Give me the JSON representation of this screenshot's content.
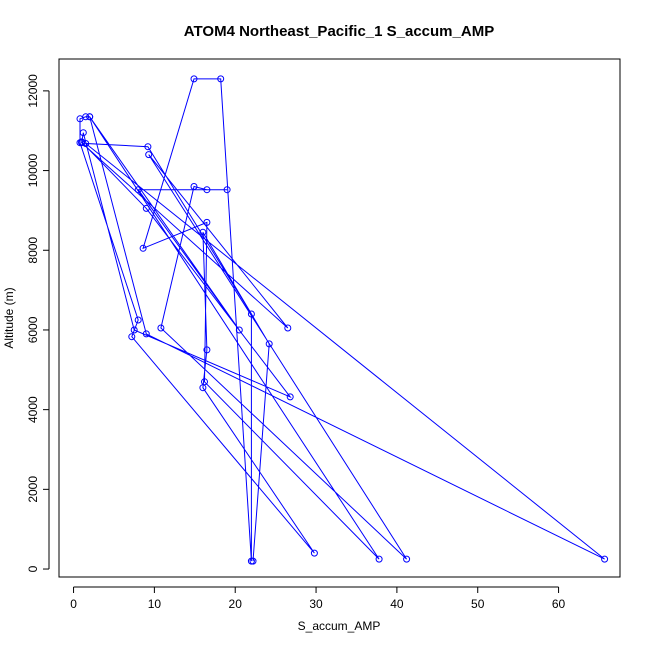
{
  "chart_data": {
    "type": "scatter",
    "title": "ATOM4 Northeast_Pacific_1 S_accum_AMP",
    "xlabel": "S_accum_AMP",
    "ylabel": "Altitude (m)",
    "xlim": [
      -1.8,
      67.6
    ],
    "ylim": [
      -200,
      12800
    ],
    "xticks": [
      0,
      10,
      20,
      30,
      40,
      50,
      60
    ],
    "yticks": [
      0,
      2000,
      4000,
      6000,
      8000,
      10000,
      12000
    ],
    "grid": false,
    "legend": "none",
    "color": "#0000ff",
    "series": [
      {
        "points": [
          [
            22.2,
            200
          ],
          [
            24.2,
            5650
          ],
          [
            16.0,
            8450
          ],
          [
            16.5,
            5500
          ],
          [
            16.0,
            4550
          ],
          [
            29.8,
            400
          ],
          [
            7.2,
            5830
          ],
          [
            8.0,
            6250
          ],
          [
            0.8,
            10700
          ],
          [
            0.8,
            11300
          ],
          [
            1.5,
            11350
          ],
          [
            2.0,
            11350
          ],
          [
            9.0,
            5900
          ],
          [
            65.7,
            250
          ],
          [
            1.5,
            10680
          ],
          [
            9.2,
            10600
          ],
          [
            22.0,
            6400
          ],
          [
            22.0,
            200
          ],
          [
            18.2,
            12300
          ],
          [
            14.9,
            12300
          ],
          [
            8.6,
            8050
          ],
          [
            16.5,
            8700
          ],
          [
            16.2,
            4700
          ],
          [
            37.8,
            250
          ],
          [
            2.0,
            11350
          ],
          [
            20.5,
            6000
          ],
          [
            8.0,
            9520
          ],
          [
            19.0,
            9520
          ],
          [
            16.5,
            9520
          ],
          [
            14.9,
            9600
          ],
          [
            10.8,
            6050
          ],
          [
            41.2,
            250
          ],
          [
            9.3,
            10400
          ],
          [
            26.5,
            6050
          ],
          [
            1.0,
            10700
          ],
          [
            1.2,
            10950
          ],
          [
            7.5,
            6000
          ],
          [
            26.8,
            4320
          ],
          [
            9.0,
            9050
          ],
          [
            1.0,
            10720
          ]
        ]
      }
    ]
  }
}
